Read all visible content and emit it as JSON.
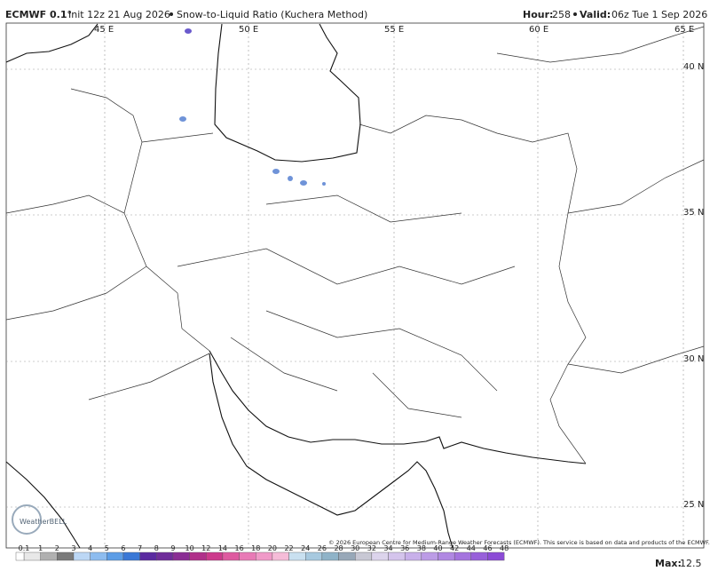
{
  "header": {
    "model": "ECMWF 0.1°",
    "init": "Init 12z 21 Aug 2026",
    "product": "Snow-to-Liquid Ratio (Kuchera Method)",
    "hour_label": "Hour:",
    "hour": "258",
    "valid_label": "Valid:",
    "valid": "06z Tue 1 Sep 2026"
  },
  "map": {
    "lon_labels": [
      "45 E",
      "50 E",
      "55 E",
      "60 E",
      "65 E"
    ],
    "lat_labels": [
      "40 N",
      "35 N",
      "30 N",
      "25 N"
    ],
    "credit": "© 2026 European Centre for Medium-Range Weather Forecasts (ECMWF). This service is based on data and products of the ECMWF.",
    "logo": "WeatherBELL"
  },
  "colorbar": {
    "labels": [
      0.1,
      1,
      2,
      3,
      4,
      5,
      6,
      7,
      8,
      9,
      10,
      12,
      14,
      16,
      18,
      20,
      22,
      24,
      26,
      28,
      30,
      32,
      34,
      36,
      38,
      40,
      42,
      44,
      46,
      48
    ],
    "colors": [
      "#e8e8e8",
      "#b0b0b0",
      "#7a7a7a",
      "#bcd7f5",
      "#8dbcef",
      "#5c9de6",
      "#3a78d6",
      "#5a2aa0",
      "#6f2d9a",
      "#8a2e94",
      "#b0308a",
      "#cc3a8c",
      "#de5aa0",
      "#e87ab6",
      "#f09ac8",
      "#f5bcd8",
      "#c9e0f0",
      "#a7c9df",
      "#8fb3c8",
      "#98a8b8",
      "#c8c8d4",
      "#dcd4ec",
      "#d4c4ec",
      "#c8b0ea",
      "#bc9ce6",
      "#b088e2",
      "#a474de",
      "#9860da",
      "#8c4cd6"
    ],
    "max_label": "Max:",
    "max": "12.5"
  }
}
